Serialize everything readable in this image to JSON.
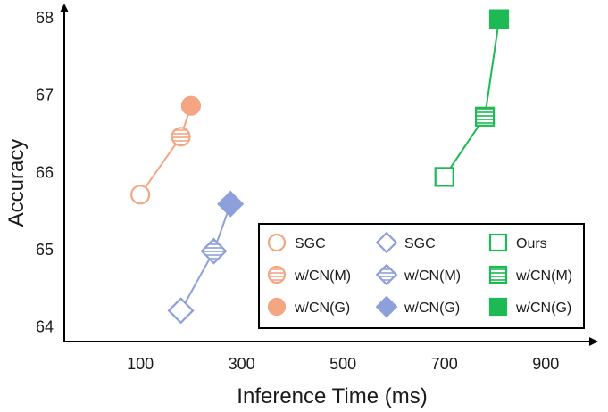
{
  "chart_data": {
    "type": "scatter",
    "title": "",
    "xlabel": "Inference Time (ms)",
    "ylabel": "Accuracy",
    "xlim": [
      -50,
      1000
    ],
    "ylim": [
      63.8,
      68.15
    ],
    "xticks": [
      "100",
      "300",
      "500",
      "700",
      "900"
    ],
    "yticks": [
      "64",
      "65",
      "66",
      "67",
      "68"
    ],
    "xtick_values": [
      100,
      300,
      500,
      700,
      900
    ],
    "ytick_values": [
      64,
      65,
      66,
      67,
      68
    ],
    "legend_position": "lower-right",
    "series": [
      {
        "name": "orange-circles",
        "color": "#f4a582",
        "marker": "circle",
        "points": [
          {
            "label": "SGC",
            "x": 100,
            "y": 65.7,
            "fill": "none"
          },
          {
            "label": "w/CN(M)",
            "x": 180,
            "y": 66.45,
            "fill": "hatch"
          },
          {
            "label": "w/CN(G)",
            "x": 200,
            "y": 66.85,
            "fill": "solid"
          }
        ]
      },
      {
        "name": "blue-diamonds",
        "color": "#8da0db",
        "marker": "diamond",
        "points": [
          {
            "label": "SGC",
            "x": 180,
            "y": 64.2,
            "fill": "none"
          },
          {
            "label": "w/CN(M)",
            "x": 245,
            "y": 64.97,
            "fill": "hatch"
          },
          {
            "label": "w/CN(G)",
            "x": 278,
            "y": 65.58,
            "fill": "solid"
          }
        ]
      },
      {
        "name": "green-squares",
        "color": "#1db954",
        "marker": "square",
        "points": [
          {
            "label": "Ours",
            "x": 700,
            "y": 65.93,
            "fill": "none"
          },
          {
            "label": "w/CN(M)",
            "x": 780,
            "y": 66.71,
            "fill": "hatch"
          },
          {
            "label": "w/CN(G)",
            "x": 808,
            "y": 67.97,
            "fill": "solid"
          }
        ]
      }
    ],
    "legend": [
      [
        {
          "label": "SGC",
          "marker": "circle",
          "fill": "none",
          "color": "#f4a582"
        },
        {
          "label": "w/CN(M)",
          "marker": "circle",
          "fill": "hatch",
          "color": "#f4a582"
        },
        {
          "label": "w/CN(G)",
          "marker": "circle",
          "fill": "solid",
          "color": "#f4a582"
        }
      ],
      [
        {
          "label": "SGC",
          "marker": "diamond",
          "fill": "none",
          "color": "#8da0db"
        },
        {
          "label": "w/CN(M)",
          "marker": "diamond",
          "fill": "hatch",
          "color": "#8da0db"
        },
        {
          "label": "w/CN(G)",
          "marker": "diamond",
          "fill": "solid",
          "color": "#8da0db"
        }
      ],
      [
        {
          "label": "Ours",
          "marker": "square",
          "fill": "none",
          "color": "#1db954"
        },
        {
          "label": "w/CN(M)",
          "marker": "square",
          "fill": "hatch",
          "color": "#1db954"
        },
        {
          "label": "w/CN(G)",
          "marker": "square",
          "fill": "solid",
          "color": "#1db954"
        }
      ]
    ]
  }
}
